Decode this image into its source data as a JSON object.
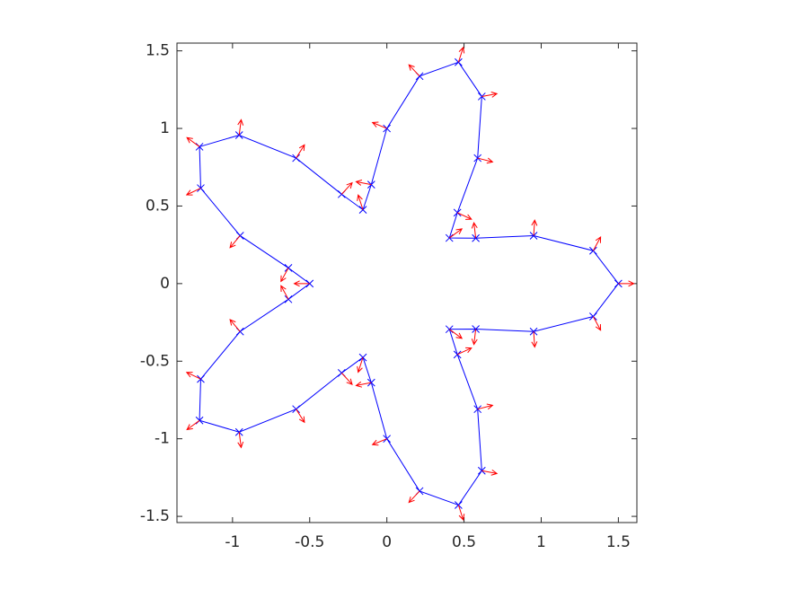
{
  "chart_data": {
    "type": "quiver",
    "x": [
      1.5,
      1.337,
      0.951,
      0.576,
      0.405,
      0.457,
      0.588,
      0.615,
      0.464,
      0.212,
      0,
      -0.101,
      -0.155,
      -0.293,
      -0.588,
      -0.957,
      -1.214,
      -1.206,
      -0.951,
      -0.638,
      -0.5,
      -0.638,
      -0.951,
      -1.206,
      -1.214,
      -0.957,
      -0.588,
      -0.293,
      -0.155,
      -0.101,
      0,
      0.212,
      0.464,
      0.615,
      0.588,
      0.457,
      0.405,
      0.576,
      0.951,
      1.337
    ],
    "y": [
      0,
      0.212,
      0.309,
      0.293,
      0.294,
      0.457,
      0.809,
      1.206,
      1.427,
      1.337,
      1,
      0.638,
      0.476,
      0.576,
      0.809,
      0.957,
      0.882,
      0.615,
      0.309,
      0.101,
      0,
      -0.101,
      -0.309,
      -0.615,
      -0.882,
      -0.957,
      -0.809,
      -0.576,
      -0.476,
      -0.638,
      -1,
      -1.337,
      -1.427,
      -1.206,
      -0.809,
      -0.457,
      -0.294,
      -0.293,
      -0.309,
      -0.212
    ],
    "u": [
      0.1,
      0.048,
      0.007,
      -0.012,
      0.081,
      0.091,
      0.097,
      0.098,
      0.031,
      -0.069,
      -0.093,
      -0.098,
      -0.031,
      0.068,
      0.054,
      0.013,
      -0.081,
      -0.091,
      -0.065,
      -0.048,
      -0.1,
      -0.048,
      -0.065,
      -0.091,
      -0.081,
      0.013,
      0.054,
      0.068,
      -0.031,
      -0.098,
      -0.093,
      -0.069,
      0.031,
      0.098,
      0.097,
      0.091,
      0.081,
      -0.012,
      0.007,
      0.048
    ],
    "v": [
      0,
      0.088,
      0.1,
      0.099,
      0.059,
      -0.042,
      -0.025,
      0.018,
      0.095,
      0.073,
      0.038,
      0.019,
      0.095,
      0.074,
      0.085,
      0.099,
      0.059,
      -0.043,
      -0.077,
      -0.087,
      0,
      0.087,
      0.077,
      0.043,
      -0.059,
      -0.099,
      -0.085,
      -0.074,
      -0.095,
      -0.019,
      -0.038,
      -0.073,
      -0.095,
      -0.018,
      0.025,
      0.042,
      -0.059,
      -0.099,
      -0.1,
      -0.088
    ],
    "curve_color": "#0000ff",
    "arrow_color": "#ff0000",
    "xlim": [
      -1.36,
      1.62
    ],
    "ylim": [
      -1.54,
      1.55
    ],
    "xticks": [
      -1,
      -0.5,
      0,
      0.5,
      1,
      1.5
    ],
    "yticks": [
      -1.5,
      -1,
      -0.5,
      0,
      0.5,
      1,
      1.5
    ]
  }
}
